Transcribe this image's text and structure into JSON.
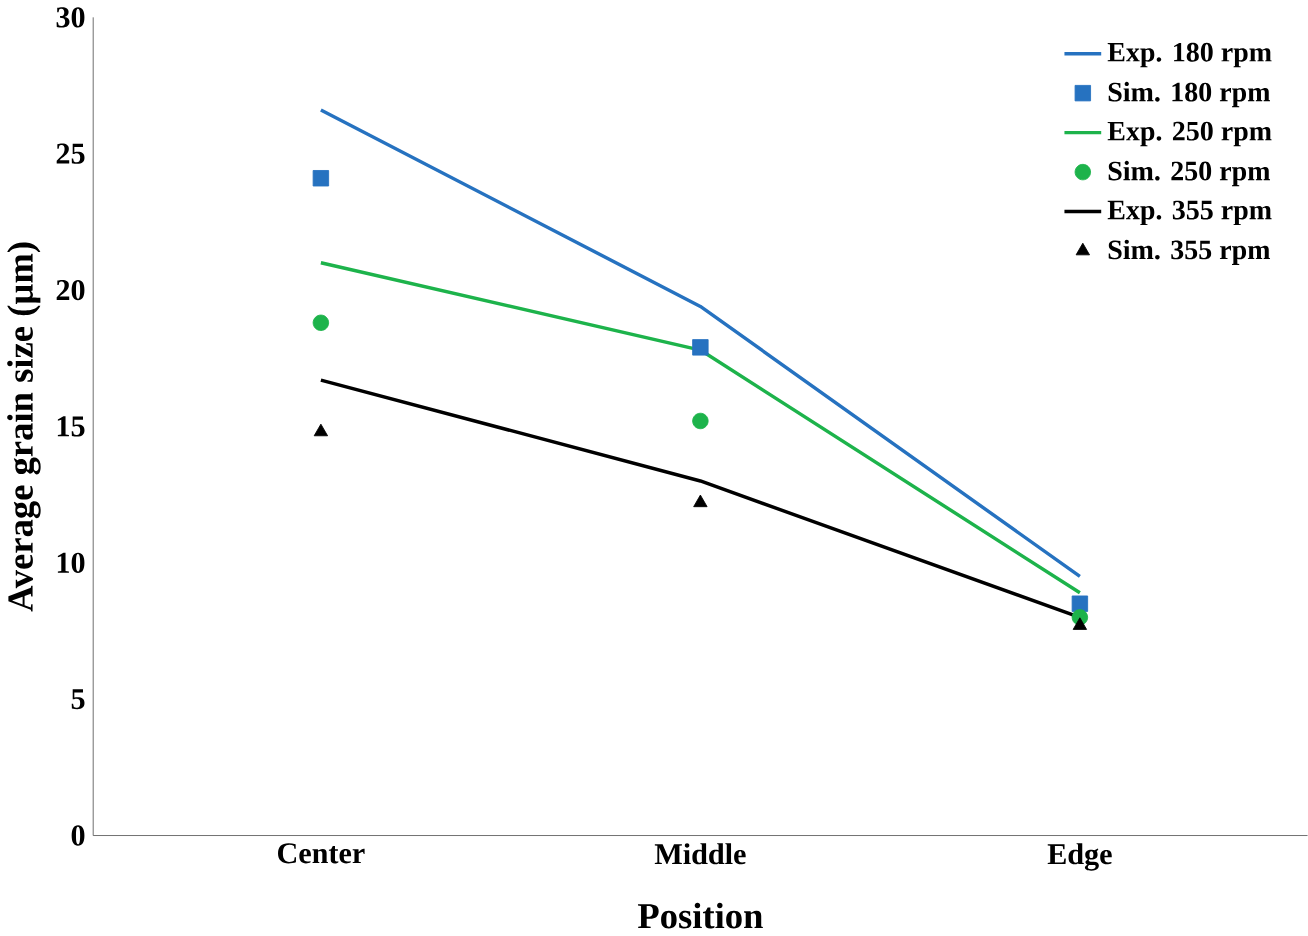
{
  "chart_data": {
    "type": "line",
    "xlabel": "Position",
    "ylabel": "Average grain size (µm)",
    "categories": [
      "Center",
      "Middle",
      "Edge"
    ],
    "ylim": [
      0,
      30
    ],
    "yticks": [
      0,
      5,
      10,
      15,
      20,
      25,
      30
    ],
    "legend": "top right",
    "grid": false,
    "series": [
      {
        "name": "Exp. 180 rpm",
        "color": "#2672c0",
        "values": [
          26.6,
          19.4,
          9.5
        ]
      },
      {
        "name": "Sim. 180 rpm",
        "type": "scatter",
        "marker": "square",
        "color": "#2672c0",
        "values": [
          24.1,
          17.9,
          8.5
        ]
      },
      {
        "name": "Exp. 250 rpm",
        "color": "#1db34b",
        "values": [
          21.0,
          17.8,
          8.9
        ]
      },
      {
        "name": "Sim. 250 rpm",
        "type": "scatter",
        "marker": "circle",
        "color": "#1db34b",
        "values": [
          18.8,
          15.2,
          8.0
        ]
      },
      {
        "name": "Exp. 355 rpm",
        "color": "#000000",
        "values": [
          16.7,
          13.0,
          8.0
        ]
      },
      {
        "name": "Sim. 355 rpm",
        "type": "scatter",
        "marker": "triangle",
        "color": "#000000",
        "values": [
          14.8,
          12.2,
          7.7
        ]
      }
    ]
  }
}
